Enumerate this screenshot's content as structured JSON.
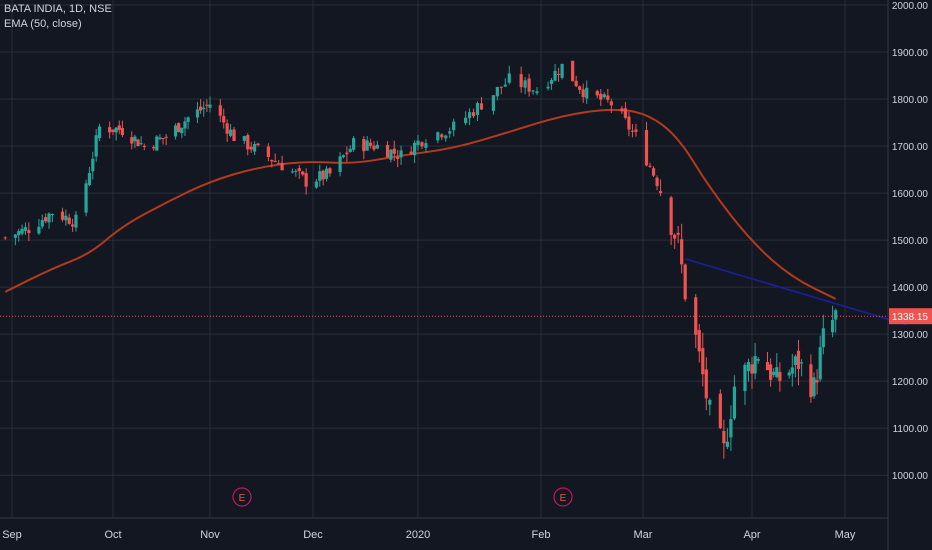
{
  "legend": {
    "symbol_line": "BATA INDIA, 1D, NSE",
    "indicator_line": "EMA (50, close)"
  },
  "colors": {
    "background": "#131722",
    "grid": "#2a2e39",
    "text": "#d1d4dc",
    "up": "#26a69a",
    "down": "#ef5350",
    "ema": "#b33a1d",
    "trendline": "#1a1fa0",
    "price_line": "#ef5350"
  },
  "chart_data": {
    "type": "candlestick",
    "title": "BATA INDIA, 1D, NSE",
    "x_ticks": [
      "Sep",
      "Oct",
      "Nov",
      "Dec",
      "2020",
      "Feb",
      "Mar",
      "Apr",
      "May"
    ],
    "y_ticks": [
      "2000.00",
      "1900.00",
      "1800.00",
      "1700.00",
      "1600.00",
      "1500.00",
      "1400.00",
      "1300.00",
      "1200.00",
      "1100.00",
      "1000.00"
    ],
    "ylim": [
      950,
      2010
    ],
    "last_price": "1338.15",
    "earnings_markers": [
      {
        "label": "E",
        "date": "Nov 2019"
      },
      {
        "label": "E",
        "date": "Feb 2020"
      }
    ],
    "grid": true,
    "series": [
      {
        "name": "Price",
        "type": "candlestick",
        "approx_close_path": [
          [
            "2019-08-30",
            1505
          ],
          [
            "2019-09-06",
            1525
          ],
          [
            "2019-09-13",
            1560
          ],
          [
            "2019-09-20",
            1540
          ],
          [
            "2019-09-24",
            1650
          ],
          [
            "2019-09-27",
            1740
          ],
          [
            "2019-10-04",
            1735
          ],
          [
            "2019-10-11",
            1700
          ],
          [
            "2019-10-18",
            1720
          ],
          [
            "2019-10-25",
            1760
          ],
          [
            "2019-11-01",
            1790
          ],
          [
            "2019-11-08",
            1720
          ],
          [
            "2019-11-15",
            1690
          ],
          [
            "2019-11-22",
            1660
          ],
          [
            "2019-11-29",
            1625
          ],
          [
            "2019-12-06",
            1640
          ],
          [
            "2019-12-13",
            1705
          ],
          [
            "2019-12-20",
            1700
          ],
          [
            "2019-12-27",
            1680
          ],
          [
            "2020-01-03",
            1720
          ],
          [
            "2020-01-10",
            1740
          ],
          [
            "2020-01-17",
            1790
          ],
          [
            "2020-01-24",
            1840
          ],
          [
            "2020-01-31",
            1820
          ],
          [
            "2020-02-07",
            1870
          ],
          [
            "2020-02-14",
            1810
          ],
          [
            "2020-02-21",
            1790
          ],
          [
            "2020-02-28",
            1720
          ],
          [
            "2020-03-06",
            1610
          ],
          [
            "2020-03-11",
            1490
          ],
          [
            "2020-03-13",
            1390
          ],
          [
            "2020-03-16",
            1290
          ],
          [
            "2020-03-20",
            1130
          ],
          [
            "2020-03-24",
            1050
          ],
          [
            "2020-03-27",
            1190
          ],
          [
            "2020-04-03",
            1260
          ],
          [
            "2020-04-09",
            1200
          ],
          [
            "2020-04-16",
            1240
          ],
          [
            "2020-04-21",
            1185
          ],
          [
            "2020-04-24",
            1290
          ],
          [
            "2020-04-28",
            1338
          ]
        ]
      },
      {
        "name": "EMA (50, close)",
        "type": "line",
        "points": [
          [
            "2019-08-30",
            1390
          ],
          [
            "2019-09-13",
            1440
          ],
          [
            "2019-09-24",
            1470
          ],
          [
            "2019-10-04",
            1530
          ],
          [
            "2019-10-18",
            1580
          ],
          [
            "2019-11-01",
            1625
          ],
          [
            "2019-11-15",
            1655
          ],
          [
            "2019-11-29",
            1668
          ],
          [
            "2019-12-13",
            1662
          ],
          [
            "2019-12-27",
            1680
          ],
          [
            "2020-01-10",
            1695
          ],
          [
            "2020-01-24",
            1730
          ],
          [
            "2020-02-07",
            1765
          ],
          [
            "2020-02-21",
            1780
          ],
          [
            "2020-03-02",
            1770
          ],
          [
            "2020-03-11",
            1720
          ],
          [
            "2020-03-20",
            1610
          ],
          [
            "2020-04-01",
            1495
          ],
          [
            "2020-04-14",
            1420
          ],
          [
            "2020-04-28",
            1375
          ]
        ]
      },
      {
        "name": "Trendline",
        "type": "line",
        "points": [
          [
            "2020-03-13",
            1460
          ],
          [
            "2020-05-08",
            1320
          ]
        ]
      }
    ]
  }
}
